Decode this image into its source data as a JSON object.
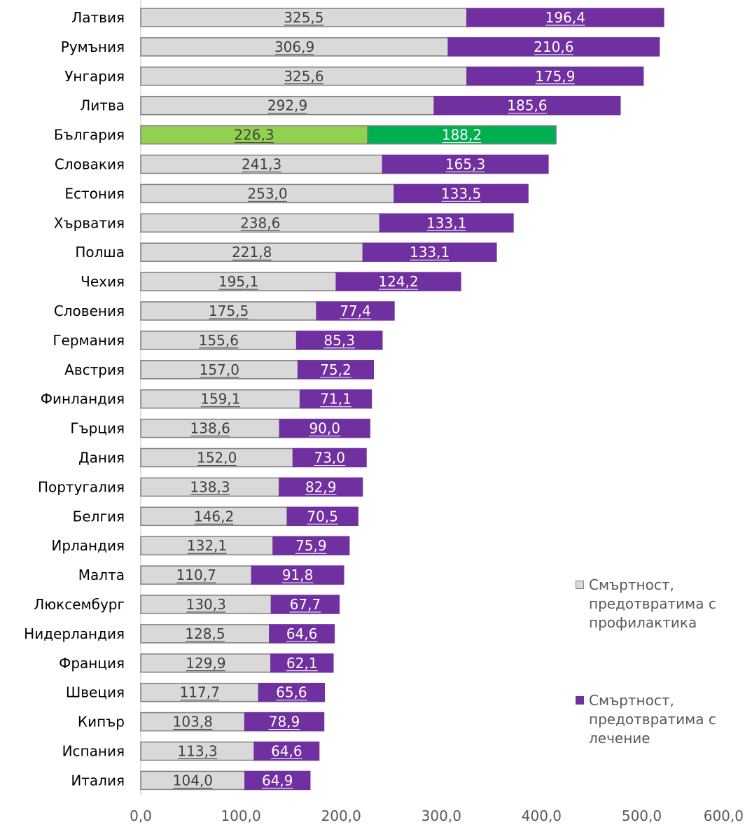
{
  "chart_data": {
    "type": "bar",
    "orientation": "horizontal",
    "stacked": true,
    "categories": [
      "Латвия",
      "Румъния",
      "Унгария",
      "Литва",
      "България",
      "Словакия",
      "Естония",
      "Хърватия",
      "Полша",
      "Чехия",
      "Словения",
      "Германия",
      "Австрия",
      "Финландия",
      "Гърция",
      "Дания",
      "Португалия",
      "Белгия",
      "Ирландия",
      "Малта",
      "Люксембург",
      "Нидерландия",
      "Франция",
      "Швеция",
      "Кипър",
      "Испания",
      "Италия"
    ],
    "series": [
      {
        "name": "Смъртност, предотвратима с профилактика",
        "color": "#d9d9d9",
        "values": [
          325.5,
          306.9,
          325.6,
          292.9,
          226.3,
          241.3,
          253.0,
          238.6,
          221.8,
          195.1,
          175.5,
          155.6,
          157.0,
          159.1,
          138.6,
          152.0,
          138.3,
          146.2,
          132.1,
          110.7,
          130.3,
          128.5,
          129.9,
          117.7,
          103.8,
          113.3,
          104.0
        ],
        "labels": [
          "325,5",
          "306,9",
          "325,6",
          "292,9",
          "226,3",
          "241,3",
          "253,0",
          "238,6",
          "221,8",
          "195,1",
          "175,5",
          "155,6",
          "157,0",
          "159,1",
          "138,6",
          "152,0",
          "138,3",
          "146,2",
          "132,1",
          "110,7",
          "130,3",
          "128,5",
          "129,9",
          "117,7",
          "103,8",
          "113,3",
          "104,0"
        ]
      },
      {
        "name": "Смъртност, предотвратима с лечение",
        "color": "#7030a0",
        "values": [
          196.4,
          210.6,
          175.9,
          185.6,
          188.2,
          165.3,
          133.5,
          133.1,
          133.1,
          124.2,
          77.4,
          85.3,
          75.2,
          71.1,
          90.0,
          73.0,
          82.9,
          70.5,
          75.9,
          91.8,
          67.7,
          64.6,
          62.1,
          65.6,
          78.9,
          64.6,
          64.9
        ],
        "labels": [
          "196,4",
          "210,6",
          "175,9",
          "185,6",
          "188,2",
          "165,3",
          "133,5",
          "133,1",
          "133,1",
          "124,2",
          "77,4",
          "85,3",
          "75,2",
          "71,1",
          "90,0",
          "73,0",
          "82,9",
          "70,5",
          "75,9",
          "91,8",
          "67,7",
          "64,6",
          "62,1",
          "65,6",
          "78,9",
          "64,6",
          "64,9"
        ]
      }
    ],
    "highlight": {
      "category": "България",
      "colors": [
        "#92d050",
        "#00b050"
      ]
    },
    "xlim": [
      0,
      600
    ],
    "xticks": [
      0,
      100,
      200,
      300,
      400,
      500,
      600
    ],
    "xtick_labels": [
      "0,0",
      "100,0",
      "200,0",
      "300,0",
      "400,0",
      "500,0",
      "600,0"
    ],
    "legend_position": "right",
    "grid": false
  },
  "legend": {
    "items": [
      {
        "label": "Смъртност, предотвратима с профилактика",
        "color": "#d9d9d9",
        "border": "#7f7f7f"
      },
      {
        "label": "Смъртност, предотвратима с лечение",
        "color": "#7030a0",
        "border": "#7030a0"
      }
    ]
  }
}
